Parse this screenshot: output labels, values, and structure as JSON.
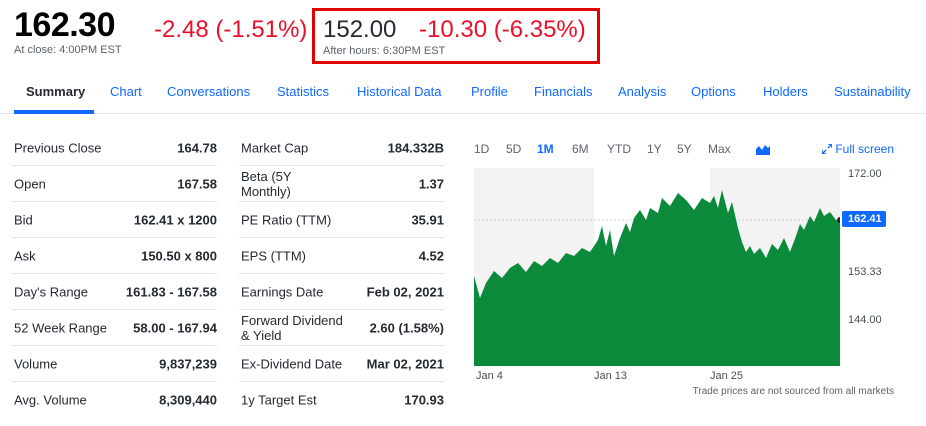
{
  "quote": {
    "price": "162.30",
    "change": "-2.48 (-1.51%)",
    "close_note": "At close: 4:00PM EST",
    "after_hours_price": "152.00",
    "after_hours_change": "-10.30 (-6.35%)",
    "after_hours_note": "After hours: 6:30PM EST",
    "negative_color": "#eb0f29",
    "highlight_box_color": "#e00000"
  },
  "tabs": [
    "Summary",
    "Chart",
    "Conversations",
    "Statistics",
    "Historical Data",
    "Profile",
    "Financials",
    "Analysis",
    "Options",
    "Holders",
    "Sustainability"
  ],
  "active_tab": "Summary",
  "stats_left": [
    {
      "label": "Previous Close",
      "value": "164.78"
    },
    {
      "label": "Open",
      "value": "167.58"
    },
    {
      "label": "Bid",
      "value": "162.41 x 1200"
    },
    {
      "label": "Ask",
      "value": "150.50 x 800"
    },
    {
      "label": "Day's Range",
      "value": "161.83 - 167.58"
    },
    {
      "label": "52 Week Range",
      "value": "58.00 - 167.94"
    },
    {
      "label": "Volume",
      "value": "9,837,239"
    },
    {
      "label": "Avg. Volume",
      "value": "8,309,440"
    }
  ],
  "stats_right": [
    {
      "label": "Market Cap",
      "value": "184.332B"
    },
    {
      "label": "Beta (5Y Monthly)",
      "value": "1.37"
    },
    {
      "label": "PE Ratio (TTM)",
      "value": "35.91"
    },
    {
      "label": "EPS (TTM)",
      "value": "4.52"
    },
    {
      "label": "Earnings Date",
      "value": "Feb 02, 2021"
    },
    {
      "label": "Forward Dividend & Yield",
      "value": "2.60 (1.58%)"
    },
    {
      "label": "Ex-Dividend Date",
      "value": "Mar 02, 2021"
    },
    {
      "label": "1y Target Est",
      "value": "170.93"
    }
  ],
  "chart": {
    "ranges": [
      "1D",
      "5D",
      "1M",
      "6M",
      "YTD",
      "1Y",
      "5Y",
      "Max"
    ],
    "active_range": "1M",
    "chart_type_icon": "mountain-chart-icon",
    "fullscreen_label": "Full screen",
    "fullscreen_icon": "expand-arrows-icon",
    "y_ticks": [
      "172.00",
      "153.33",
      "144.00"
    ],
    "current_price_label": "162.41",
    "x_ticks": [
      "Jan 4",
      "Jan 13",
      "Jan 25"
    ],
    "disclaimer": "Trade prices are not sourced from all markets",
    "accent_color": "#0f69ff",
    "fill_color": "#0a8a3a"
  }
}
